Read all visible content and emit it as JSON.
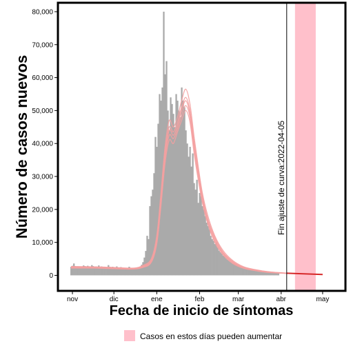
{
  "chart_data": {
    "type": "bar",
    "xlabel": "Fecha de inicio de síntomas",
    "ylabel": "Número de casos nuevos",
    "x_range": [
      "2021-10-22",
      "2022-05-17"
    ],
    "ylim": [
      -4500,
      82500
    ],
    "y_ticks": [
      0,
      10000,
      20000,
      30000,
      40000,
      50000,
      60000,
      70000,
      80000
    ],
    "y_tick_labels": [
      "0",
      "10,000",
      "20,000",
      "30,000",
      "40,000",
      "50,000",
      "60,000",
      "70,000",
      "80,000"
    ],
    "x_ticks": [
      "2021-11-01",
      "2021-12-01",
      "2022-01-01",
      "2022-02-01",
      "2022-03-01",
      "2022-04-01",
      "2022-05-01"
    ],
    "x_tick_labels": [
      "nov",
      "dic",
      "ene",
      "feb",
      "mar",
      "abr",
      "may"
    ],
    "grid": false,
    "bar_color": "#aaaaaa",
    "fit_color": "#f4a0a0",
    "projection_color": "#d62728",
    "shade_color": "#ffc0cb",
    "vline_date": "2022-04-05",
    "vline_label": "Fin ajuste de curva:2022-04-05",
    "shaded_range": [
      "2022-04-11",
      "2022-04-26"
    ],
    "legend_label": "Casos en estos días pueden aumentar",
    "legend_position": "bottom",
    "daily_cases": {
      "start": "2021-10-31",
      "values": [
        2600,
        2900,
        3600,
        2800,
        2400,
        2700,
        2700,
        2600,
        2700,
        3000,
        2800,
        2600,
        2900,
        2700,
        2600,
        3100,
        2800,
        2600,
        2700,
        2500,
        3000,
        2600,
        2700,
        2500,
        2600,
        2500,
        2400,
        3100,
        2600,
        2400,
        2600,
        2500,
        2400,
        2700,
        2400,
        2300,
        2500,
        2200,
        2100,
        2300,
        2200,
        2100,
        2600,
        2300,
        2200,
        2300,
        2100,
        2000,
        2300,
        2200,
        2400,
        3200,
        4000,
        5400,
        7400,
        12000,
        11000,
        21000,
        24000,
        26000,
        31000,
        42000,
        39000,
        46000,
        55000,
        53000,
        57000,
        80000,
        61000,
        65000,
        50000,
        44000,
        54000,
        52000,
        49000,
        45000,
        55000,
        53000,
        50000,
        48000,
        57000,
        53000,
        51000,
        44000,
        40000,
        36000,
        39000,
        33000,
        37000,
        28000,
        26000,
        29000,
        22000,
        25000,
        24000,
        21000,
        20000,
        18000,
        16000,
        15000,
        14000,
        12000,
        11000,
        10500,
        9500,
        10000,
        8500,
        7500,
        7000,
        6600,
        6000,
        5700,
        5200,
        4800,
        4500,
        4200,
        3900,
        3600,
        3500,
        3300,
        3100,
        2800,
        2600,
        2500,
        2400,
        2500,
        2200,
        2000,
        1900,
        1800,
        1700,
        1600,
        1500,
        1400,
        1300,
        1250,
        1200,
        1150,
        1100,
        1050,
        1000,
        950,
        900,
        850,
        800,
        750,
        720,
        700,
        680,
        650,
        630
      ]
    },
    "fit_curves": {
      "dates": [
        "2021-10-31",
        "2021-11-15",
        "2021-12-01",
        "2021-12-15",
        "2021-12-22",
        "2021-12-28",
        "2022-01-01",
        "2022-01-04",
        "2022-01-07",
        "2022-01-10",
        "2022-01-13",
        "2022-01-16",
        "2022-01-19",
        "2022-01-22",
        "2022-01-25",
        "2022-01-28",
        "2022-01-31",
        "2022-02-03",
        "2022-02-07",
        "2022-02-12",
        "2022-02-18",
        "2022-02-25",
        "2022-03-05",
        "2022-03-15",
        "2022-03-25",
        "2022-04-05"
      ],
      "series": [
        [
          2700,
          2600,
          2400,
          2200,
          3000,
          5000,
          12000,
          25000,
          39000,
          47000,
          45000,
          48000,
          53000,
          56500,
          52000,
          42000,
          33000,
          25000,
          18000,
          12000,
          7500,
          4500,
          2600,
          1600,
          1000,
          700
        ],
        [
          2500,
          2500,
          2300,
          2100,
          2800,
          4600,
          11000,
          24000,
          37500,
          45000,
          43500,
          46500,
          51000,
          54000,
          50000,
          40500,
          32000,
          24000,
          17000,
          11500,
          7000,
          4200,
          2400,
          1500,
          950,
          650
        ],
        [
          2400,
          2400,
          2200,
          2000,
          2600,
          4300,
          10500,
          23000,
          36500,
          44000,
          42500,
          45500,
          50000,
          53000,
          49000,
          39500,
          31000,
          23500,
          16500,
          11000,
          6800,
          4000,
          2300,
          1400,
          900,
          620
        ],
        [
          2300,
          2300,
          2100,
          1950,
          2500,
          4100,
          10000,
          22000,
          35500,
          42500,
          41500,
          44500,
          48500,
          51500,
          48000,
          38500,
          30000,
          23000,
          16000,
          10500,
          6500,
          3800,
          2200,
          1350,
          850,
          600
        ],
        [
          2200,
          2200,
          2000,
          1900,
          2400,
          3900,
          9500,
          21000,
          34000,
          41000,
          40000,
          43500,
          47000,
          50000,
          46500,
          37000,
          29000,
          22000,
          15500,
          10000,
          6200,
          3600,
          2100,
          1300,
          820,
          580
        ]
      ]
    },
    "projection": {
      "dates": [
        "2022-04-05",
        "2022-05-01"
      ],
      "values": [
        650,
        250
      ]
    }
  }
}
